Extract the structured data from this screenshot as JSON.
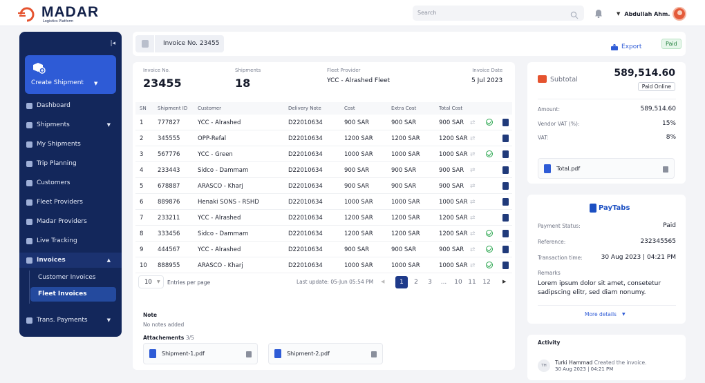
{
  "brand": {
    "name": "MADAR",
    "tagline": "Logistics Platform",
    "color": "#14224a",
    "accent": "#e5532f"
  },
  "topbar": {
    "search_placeholder": "Search",
    "user_name": "Abdullah Ahm..."
  },
  "sidebar": {
    "create_label": "Create Shipment",
    "items": [
      {
        "label": "Dashboard",
        "icon": "dashboard-icon"
      },
      {
        "label": "Shipments",
        "icon": "box-icon"
      },
      {
        "label": "My Shipments",
        "icon": "box-icon"
      },
      {
        "label": "Trip Planning",
        "icon": "route-icon"
      },
      {
        "label": "Customers",
        "icon": "users-icon"
      },
      {
        "label": "Fleet Providers",
        "icon": "truck-icon"
      },
      {
        "label": "Madar Providers",
        "icon": "truck-icon"
      },
      {
        "label": "Live Tracking",
        "icon": "compass-icon"
      },
      {
        "label": "Invoices",
        "icon": "invoice-icon"
      },
      {
        "label": "Trans. Payments",
        "icon": "payment-icon"
      }
    ],
    "sub_items": [
      "Customer Invoices",
      "Fleet Invoices"
    ]
  },
  "breadcrumb": {
    "label": "Invoice No. 23455",
    "export": "Export",
    "status": "Paid"
  },
  "invoice": {
    "no_label": "Invoice No.",
    "no": "23455",
    "shipments_label": "Shipments",
    "shipments": "18",
    "provider_label": "Fleet Provider",
    "provider": "YCC - Alrashed Fleet",
    "date_label": "Invoice Date",
    "date": "5 Jul 2023"
  },
  "table": {
    "headers": [
      "SN",
      "Shipment ID",
      "Customer",
      "Delivery Note",
      "Cost",
      "Extra Cost",
      "Total Cost"
    ],
    "rows": [
      {
        "sn": "1",
        "id": "777827",
        "customer": "YCC - Alrashed",
        "note": "D22010634",
        "cost": "900 SAR",
        "extra": "900 SAR",
        "total": "900 SAR",
        "ok": true
      },
      {
        "sn": "2",
        "id": "345555",
        "customer": "OPP-Refal",
        "note": "D22010634",
        "cost": "1200 SAR",
        "extra": "1200 SAR",
        "total": "1200 SAR",
        "ok": false
      },
      {
        "sn": "3",
        "id": "567776",
        "customer": "YCC - Green",
        "note": "D22010634",
        "cost": "1000 SAR",
        "extra": "1000 SAR",
        "total": "1000 SAR",
        "ok": true
      },
      {
        "sn": "4",
        "id": "233443",
        "customer": "Sidco - Dammam",
        "note": "D22010634",
        "cost": "900 SAR",
        "extra": "900 SAR",
        "total": "900 SAR",
        "ok": false
      },
      {
        "sn": "5",
        "id": "678887",
        "customer": "ARASCO - Kharj",
        "note": "D22010634",
        "cost": "900 SAR",
        "extra": "900 SAR",
        "total": "900 SAR",
        "ok": false
      },
      {
        "sn": "6",
        "id": "889876",
        "customer": "Henaki SONS - RSHD",
        "note": "D22010634",
        "cost": "1000 SAR",
        "extra": "1000 SAR",
        "total": "1000 SAR",
        "ok": false
      },
      {
        "sn": "7",
        "id": "233211",
        "customer": "YCC - Alrashed",
        "note": "D22010634",
        "cost": "1200 SAR",
        "extra": "1200 SAR",
        "total": "1200 SAR",
        "ok": false
      },
      {
        "sn": "8",
        "id": "333456",
        "customer": "Sidco - Dammam",
        "note": "D22010634",
        "cost": "1200 SAR",
        "extra": "1200 SAR",
        "total": "1200 SAR",
        "ok": true
      },
      {
        "sn": "9",
        "id": "444567",
        "customer": "YCC - Alrashed",
        "note": "D22010634",
        "cost": "900 SAR",
        "extra": "900 SAR",
        "total": "900 SAR",
        "ok": true
      },
      {
        "sn": "10",
        "id": "888955",
        "customer": "ARASCO - Kharj",
        "note": "D22010634",
        "cost": "1000 SAR",
        "extra": "1000 SAR",
        "total": "1000 SAR",
        "ok": true
      }
    ]
  },
  "pagination": {
    "per_page": "10",
    "per_page_label": "Entries per page",
    "last_update": "Last update: 05-Jun 05:54 PM",
    "pages": [
      "1",
      "2",
      "3",
      "...",
      "10",
      "11",
      "12"
    ],
    "current": "1"
  },
  "notes": {
    "title": "Note",
    "value": "No notes added",
    "attachments_label": "Attachements",
    "attachments_count": "3/5",
    "files": [
      "Shipment-1.pdf",
      "Shipment-2.pdf"
    ]
  },
  "summary": {
    "subtotal_label": "Subtotal",
    "subtotal": "589,514.60",
    "paid_badge": "Paid Online",
    "amount_label": "Amount:",
    "amount": "589,514.60",
    "vat_label": "Vendor VAT (%):",
    "vat": "15%",
    "vat2_label": "VAT:",
    "vat2": "8%",
    "file": "Total.pdf"
  },
  "payment": {
    "provider": "PayTabs",
    "status_label": "Payment Status:",
    "status": "Paid",
    "ref_label": "Reference:",
    "ref": "232345565",
    "time_label": "Transaction time:",
    "time": "30 Aug 2023 | 04:21 PM",
    "remarks_label": "Remarks",
    "remarks": "Lorem ipsum dolor sit amet, consetetur sadipscing elitr, sed diam nonumy.",
    "more": "More details"
  },
  "activity": {
    "title": "Activity",
    "initials": "TH",
    "user": "Turki Hammad",
    "action": "Created the invoice.",
    "time": "30 Aug 2023 | 04:21 PM"
  }
}
